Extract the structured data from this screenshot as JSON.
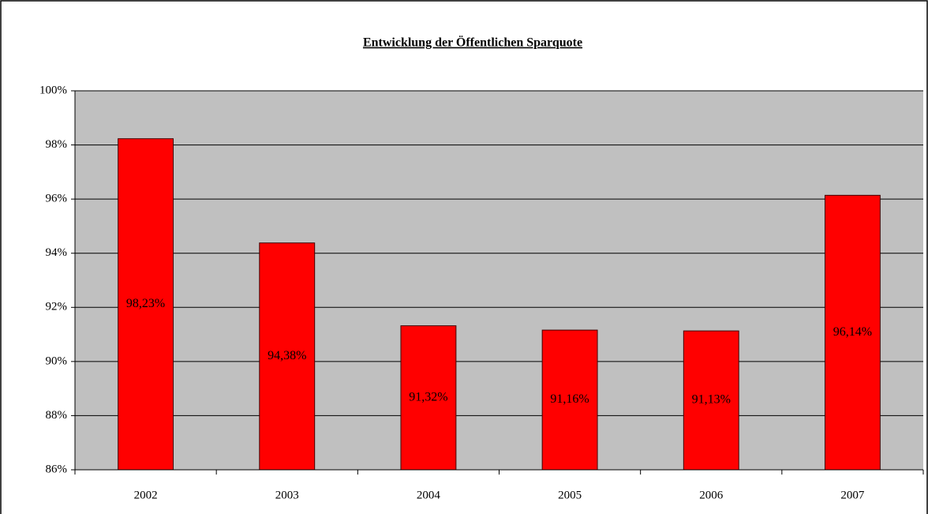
{
  "chart_data": {
    "type": "bar",
    "title": "Entwicklung der Öffentlichen Sparquote",
    "categories": [
      "2002",
      "2003",
      "2004",
      "2005",
      "2006",
      "2007"
    ],
    "values": [
      98.23,
      94.38,
      91.32,
      91.16,
      91.13,
      96.14
    ],
    "value_labels": [
      "98,23%",
      "94,38%",
      "91,32%",
      "91,16%",
      "91,13%",
      "96,14%"
    ],
    "color": "#ff0000",
    "ylim": [
      86,
      100
    ],
    "yticks": [
      {
        "value": 86,
        "label": "86%"
      },
      {
        "value": 88,
        "label": "88%"
      },
      {
        "value": 90,
        "label": "90%"
      },
      {
        "value": 92,
        "label": "92%"
      },
      {
        "value": 94,
        "label": "94%"
      },
      {
        "value": 96,
        "label": "96%"
      },
      {
        "value": 98,
        "label": "98%"
      },
      {
        "value": 100,
        "label": "100%"
      }
    ],
    "grid": true
  }
}
